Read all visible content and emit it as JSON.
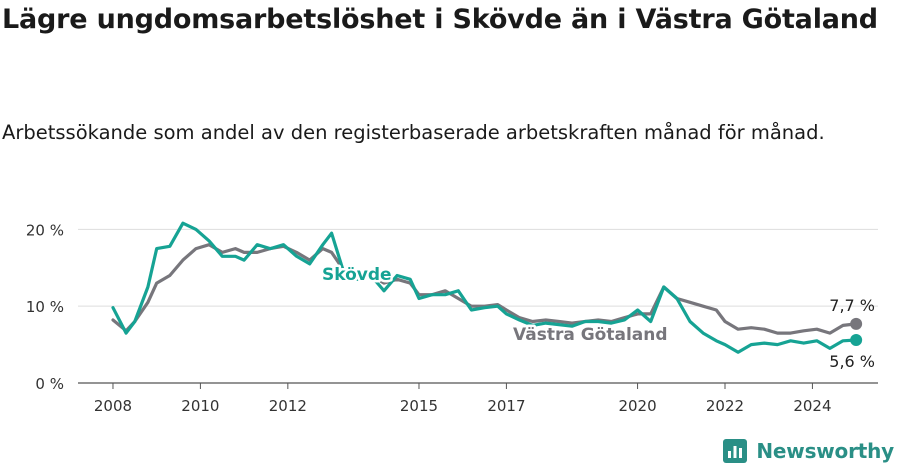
{
  "title": "Lägre ungdomsarbetslöshet i Skövde än i Västra Götaland",
  "subtitle": "Arbetssökande som andel av den registerbaserade arbetskraften månad för månad.",
  "brand": {
    "name": "Newsworthy",
    "icon": "newsworthy-logo-icon",
    "color": "#2a8f86"
  },
  "chart_data": {
    "type": "line",
    "x_ticks": [
      "2008",
      "2010",
      "2012",
      "2015",
      "2017",
      "2020",
      "2022",
      "2024"
    ],
    "y_ticks": [
      "0 %",
      "10 %",
      "20 %"
    ],
    "ylim": [
      0,
      22
    ],
    "xlim": [
      2007.2,
      2025.5
    ],
    "grid": true,
    "series": [
      {
        "name": "Skövde",
        "color": "#16a394",
        "end_label": "5,6 %",
        "x": [
          2008.0,
          2008.3,
          2008.5,
          2008.8,
          2009.0,
          2009.3,
          2009.6,
          2009.9,
          2010.2,
          2010.5,
          2010.8,
          2011.0,
          2011.3,
          2011.6,
          2011.9,
          2012.2,
          2012.5,
          2012.8,
          2013.0,
          2013.3,
          2013.6,
          2013.9,
          2014.2,
          2014.5,
          2014.8,
          2015.0,
          2015.3,
          2015.6,
          2015.9,
          2016.2,
          2016.5,
          2016.8,
          2017.0,
          2017.3,
          2017.6,
          2017.9,
          2018.2,
          2018.5,
          2018.8,
          2019.1,
          2019.4,
          2019.7,
          2020.0,
          2020.3,
          2020.6,
          2020.9,
          2021.2,
          2021.5,
          2021.8,
          2022.0,
          2022.3,
          2022.6,
          2022.9,
          2023.2,
          2023.5,
          2023.8,
          2024.1,
          2024.4,
          2024.7,
          2025.0
        ],
        "y": [
          9.8,
          6.5,
          8.0,
          12.5,
          17.5,
          17.8,
          20.8,
          20.0,
          18.5,
          16.5,
          16.5,
          16.0,
          18.0,
          17.5,
          18.0,
          16.5,
          15.5,
          18.0,
          19.5,
          14.0,
          13.5,
          14.0,
          12.0,
          14.0,
          13.5,
          11.0,
          11.5,
          11.5,
          12.0,
          9.5,
          9.8,
          10.0,
          9.0,
          8.2,
          7.5,
          7.8,
          7.6,
          7.4,
          8.0,
          8.0,
          7.8,
          8.2,
          9.5,
          8.0,
          12.5,
          11.0,
          8.0,
          6.5,
          5.5,
          5.0,
          4.0,
          5.0,
          5.2,
          5.0,
          5.5,
          5.2,
          5.5,
          4.5,
          5.5,
          5.6
        ]
      },
      {
        "name": "Västra Götaland",
        "color": "#77767c",
        "end_label": "7,7 %",
        "x": [
          2008.0,
          2008.3,
          2008.5,
          2008.8,
          2009.0,
          2009.3,
          2009.6,
          2009.9,
          2010.2,
          2010.5,
          2010.8,
          2011.0,
          2011.3,
          2011.6,
          2011.9,
          2012.2,
          2012.5,
          2012.8,
          2013.0,
          2013.3,
          2013.6,
          2013.9,
          2014.2,
          2014.5,
          2014.8,
          2015.0,
          2015.3,
          2015.6,
          2015.9,
          2016.2,
          2016.5,
          2016.8,
          2017.0,
          2017.3,
          2017.6,
          2017.9,
          2018.2,
          2018.5,
          2018.8,
          2019.1,
          2019.4,
          2019.7,
          2020.0,
          2020.3,
          2020.6,
          2020.9,
          2021.2,
          2021.5,
          2021.8,
          2022.0,
          2022.3,
          2022.6,
          2022.9,
          2023.2,
          2023.5,
          2023.8,
          2024.1,
          2024.4,
          2024.7,
          2025.0
        ],
        "y": [
          8.2,
          6.8,
          8.0,
          10.5,
          13.0,
          14.0,
          16.0,
          17.5,
          18.0,
          17.0,
          17.5,
          17.0,
          17.0,
          17.5,
          17.8,
          17.0,
          16.0,
          17.5,
          17.0,
          14.5,
          14.0,
          14.0,
          13.0,
          13.5,
          13.0,
          11.5,
          11.5,
          12.0,
          11.0,
          10.0,
          10.0,
          10.2,
          9.5,
          8.5,
          8.0,
          8.2,
          8.0,
          7.8,
          8.0,
          8.2,
          8.0,
          8.5,
          9.0,
          9.0,
          12.5,
          11.0,
          10.5,
          10.0,
          9.5,
          8.0,
          7.0,
          7.2,
          7.0,
          6.5,
          6.5,
          6.8,
          7.0,
          6.5,
          7.5,
          7.7
        ]
      }
    ]
  }
}
